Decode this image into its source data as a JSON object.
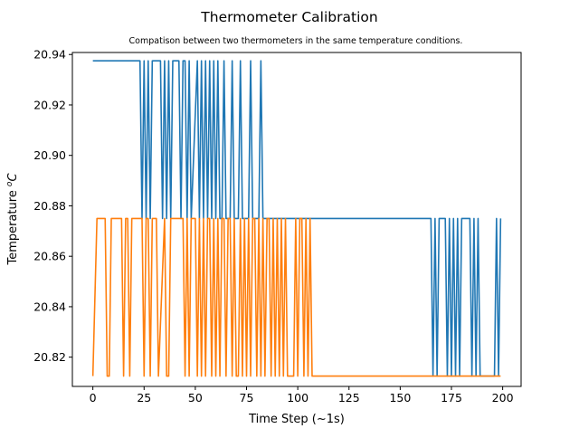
{
  "figure": {
    "title": "Thermometer Calibration",
    "subtitle": "Compatison between two thermometers in the same temperature conditions."
  },
  "chart_data": {
    "type": "line",
    "title": "Thermometer Calibration",
    "subtitle": "Compatison between two thermometers in the same temperature conditions.",
    "xlabel": "Time Step (~1s)",
    "ylabel_main": "Temperature ",
    "ylabel_sup": "o",
    "ylabel_unit": "C",
    "xlim": [
      -10,
      209
    ],
    "ylim": [
      20.8084,
      20.9408
    ],
    "xticks": [
      0,
      25,
      50,
      75,
      100,
      125,
      150,
      175,
      200
    ],
    "xtick_labels": [
      "0",
      "25",
      "50",
      "75",
      "100",
      "125",
      "150",
      "175",
      "200"
    ],
    "yticks": [
      20.82,
      20.84,
      20.86,
      20.88,
      20.9,
      20.92,
      20.94
    ],
    "ytick_labels": [
      "20.82",
      "20.84",
      "20.86",
      "20.88",
      "20.90",
      "20.92",
      "20.94"
    ],
    "grid": false,
    "legend": "none",
    "series": [
      {
        "color": "#1f77b4",
        "x": [
          0,
          23,
          24,
          25,
          26,
          27,
          28,
          29,
          30,
          31,
          33,
          34,
          35,
          36,
          37,
          38,
          39,
          41,
          42,
          43,
          44,
          45,
          46,
          47,
          48,
          51,
          52,
          53,
          54,
          55,
          56,
          57,
          58,
          59,
          60,
          61,
          62,
          63,
          64,
          65,
          66,
          67,
          68,
          69,
          70,
          71,
          72,
          73,
          74,
          75,
          76,
          77,
          78,
          79,
          80,
          81,
          82,
          83,
          165,
          166,
          167,
          168,
          169,
          172,
          173,
          174,
          175,
          176,
          177,
          178,
          179,
          180,
          184,
          185,
          186,
          187,
          188,
          189,
          196,
          197,
          198,
          199
        ],
        "y": [
          20.9375,
          20.9375,
          20.875,
          20.9375,
          20.875,
          20.9375,
          20.875,
          20.9375,
          20.9375,
          20.9375,
          20.9375,
          20.875,
          20.9375,
          20.875,
          20.9375,
          20.875,
          20.9375,
          20.9375,
          20.9375,
          20.875,
          20.9375,
          20.9375,
          20.875,
          20.9375,
          20.875,
          20.9375,
          20.875,
          20.9375,
          20.875,
          20.9375,
          20.875,
          20.9375,
          20.875,
          20.9375,
          20.875,
          20.9375,
          20.875,
          20.875,
          20.9375,
          20.875,
          20.875,
          20.875,
          20.9375,
          20.875,
          20.875,
          20.875,
          20.9375,
          20.875,
          20.875,
          20.875,
          20.875,
          20.9375,
          20.875,
          20.875,
          20.875,
          20.875,
          20.9375,
          20.875,
          20.875,
          20.8125,
          20.875,
          20.8125,
          20.875,
          20.875,
          20.8125,
          20.875,
          20.8125,
          20.875,
          20.8125,
          20.875,
          20.8125,
          20.875,
          20.875,
          20.8125,
          20.875,
          20.8125,
          20.875,
          20.8125,
          20.8125,
          20.875,
          20.8125,
          20.875
        ]
      },
      {
        "color": "#ff7f0e",
        "x": [
          0,
          2,
          3,
          6,
          7,
          8,
          9,
          10,
          14,
          15,
          16,
          17,
          18,
          19,
          24,
          25,
          26,
          27,
          28,
          29,
          30,
          31,
          32,
          35,
          36,
          37,
          38,
          39,
          44,
          45,
          46,
          47,
          48,
          49,
          50,
          51,
          52,
          53,
          54,
          55,
          56,
          57,
          58,
          59,
          60,
          61,
          62,
          63,
          64,
          65,
          66,
          67,
          68,
          69,
          70,
          71,
          72,
          73,
          74,
          75,
          76,
          77,
          78,
          79,
          80,
          81,
          82,
          83,
          84,
          85,
          86,
          87,
          88,
          89,
          90,
          91,
          92,
          93,
          94,
          95,
          98,
          99,
          100,
          101,
          102,
          103,
          104,
          105,
          106,
          107,
          108,
          199
        ],
        "y": [
          20.8125,
          20.875,
          20.875,
          20.875,
          20.8125,
          20.8125,
          20.875,
          20.875,
          20.875,
          20.8125,
          20.875,
          20.875,
          20.8125,
          20.875,
          20.875,
          20.8125,
          20.875,
          20.875,
          20.8125,
          20.875,
          20.875,
          20.875,
          20.8125,
          20.875,
          20.8125,
          20.8125,
          20.875,
          20.875,
          20.875,
          20.8125,
          20.875,
          20.8125,
          20.875,
          20.875,
          20.875,
          20.8125,
          20.875,
          20.8125,
          20.875,
          20.8125,
          20.875,
          20.875,
          20.8125,
          20.875,
          20.8125,
          20.875,
          20.8125,
          20.875,
          20.875,
          20.8125,
          20.875,
          20.875,
          20.8125,
          20.875,
          20.8125,
          20.8125,
          20.875,
          20.8125,
          20.875,
          20.8125,
          20.875,
          20.8125,
          20.875,
          20.875,
          20.8125,
          20.875,
          20.8125,
          20.875,
          20.8125,
          20.875,
          20.875,
          20.8125,
          20.875,
          20.8125,
          20.875,
          20.8125,
          20.875,
          20.8125,
          20.875,
          20.8125,
          20.8125,
          20.875,
          20.8125,
          20.875,
          20.875,
          20.8125,
          20.875,
          20.8125,
          20.875,
          20.8125,
          20.8125,
          20.8125
        ]
      }
    ]
  }
}
